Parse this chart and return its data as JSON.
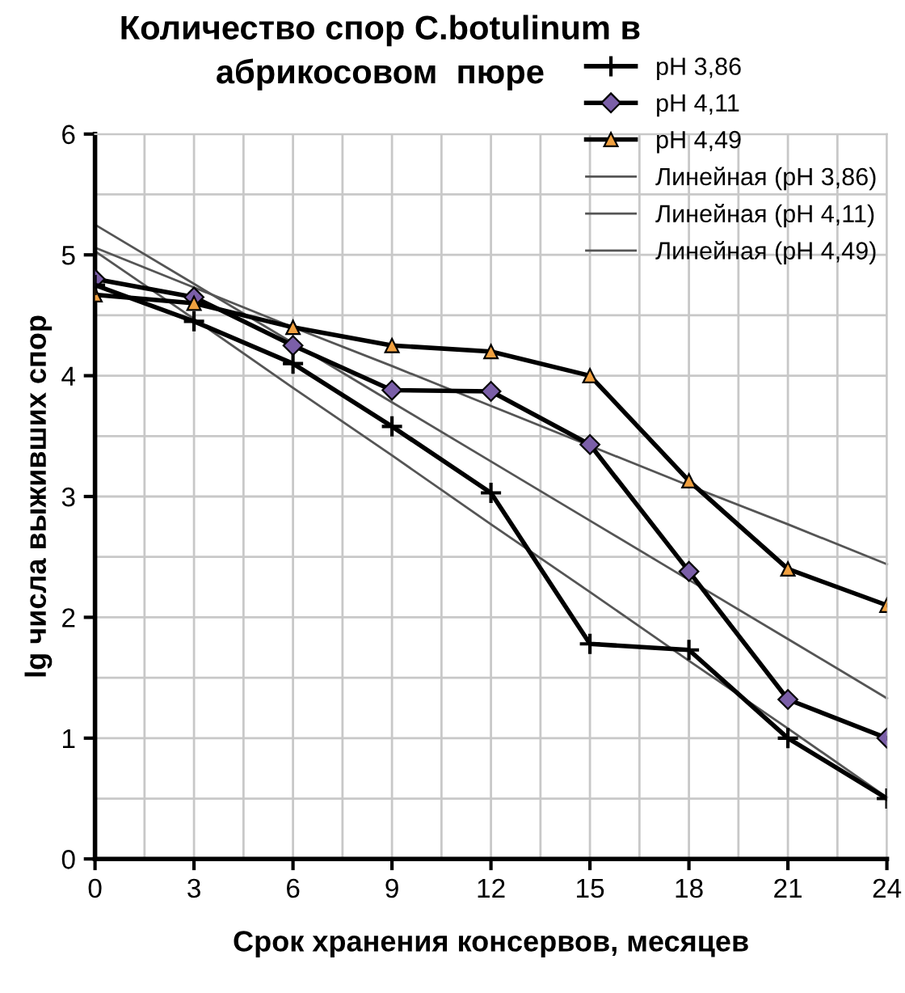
{
  "chart_data": {
    "type": "line",
    "title": "Количество спор C.botulinum в\nабрикосовом  пюре",
    "xlabel": "Срок хранения консервов, месяцев",
    "ylabel": "lg числа выживших спор",
    "x": [
      0,
      3,
      6,
      9,
      12,
      15,
      18,
      21,
      24
    ],
    "series": [
      {
        "name": "pH 3,86",
        "color": "#000000",
        "marker": "cross",
        "values": [
          4.75,
          4.45,
          4.1,
          3.58,
          3.03,
          1.78,
          1.73,
          1.0,
          0.5
        ]
      },
      {
        "name": "pH 4,11",
        "color": "#000000",
        "colors": [
          "#7b5fa8",
          "#7b5fa8",
          "#7b5fa8",
          "#7b5fa8",
          "#7b5fa8",
          "#7b5fa8",
          "#7b5fa8",
          "#7b5fa8",
          "#7b5fa8"
        ],
        "marker": "diamond",
        "values": [
          4.8,
          4.65,
          4.25,
          3.88,
          3.87,
          3.43,
          2.38,
          1.32,
          1.0
        ]
      },
      {
        "name": "pH 4,49",
        "color": "#000000",
        "colors": [
          "#f0a040",
          "#f0a040",
          "#f0a040",
          "#f0a040",
          "#f0a040",
          "#f0a040",
          "#f0a040",
          "#f0a040",
          "#f0a040"
        ],
        "marker": "triangle",
        "values": [
          4.67,
          4.6,
          4.4,
          4.25,
          4.2,
          4.0,
          3.13,
          2.4,
          2.1
        ]
      },
      {
        "name": "Линейная (pH 3,86)",
        "color": "#555555",
        "marker": "none",
        "values": [
          5.03,
          4.47,
          3.9,
          3.34,
          2.77,
          2.21,
          1.64,
          1.08,
          0.51
        ]
      },
      {
        "name": "Линейная (pH 4,11)",
        "color": "#555555",
        "marker": "none",
        "values": [
          5.25,
          4.76,
          4.27,
          3.78,
          3.29,
          2.8,
          2.31,
          1.82,
          1.33
        ]
      },
      {
        "name": "Линейная (pH 4,49)",
        "color": "#555555",
        "marker": "none",
        "values": [
          5.06,
          4.73,
          4.4,
          4.08,
          3.75,
          3.42,
          3.09,
          2.77,
          2.44
        ]
      }
    ],
    "xlim": [
      0,
      24
    ],
    "xticks": [
      0,
      {
        "value": 1.5,
        "label": null
      },
      3,
      {
        "value": 4.5,
        "label": null
      },
      6,
      {
        "value": 7.5,
        "label": null
      },
      9,
      {
        "value": 10.5,
        "label": null
      },
      12,
      {
        "value": 13.5,
        "label": null
      },
      15,
      {
        "value": 16.5,
        "label": null
      },
      18,
      {
        "value": 19.5,
        "label": null
      },
      21,
      {
        "value": 22.5,
        "label": null
      },
      24
    ],
    "ylim": [
      0,
      6
    ],
    "yticks": [
      0,
      {
        "value": 0.5,
        "label": null
      },
      1,
      {
        "value": 1.5,
        "label": null
      },
      2,
      {
        "value": 2.5,
        "label": null
      },
      3,
      {
        "value": 3.5,
        "label": null
      },
      4,
      {
        "value": 4.5,
        "label": null
      },
      5,
      {
        "value": 5.5,
        "label": null
      },
      6
    ],
    "grid": true,
    "legend": "top right"
  }
}
